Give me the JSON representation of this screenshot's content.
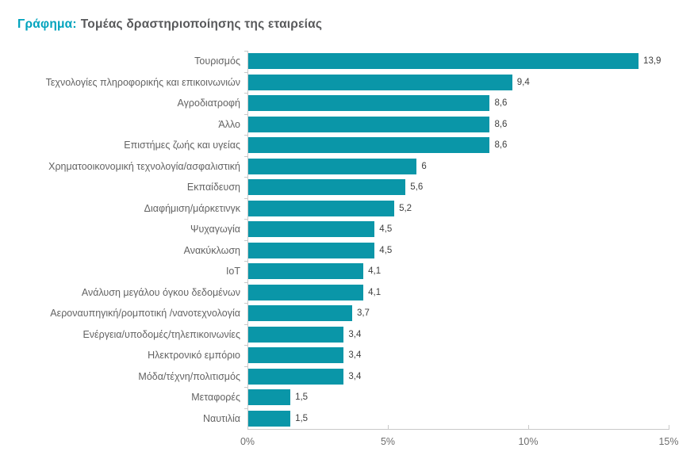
{
  "header": {
    "title_prefix": "Γράφημα:",
    "title_text": "Τομέας δραστηριοποίησης της εταιρείας"
  },
  "colors": {
    "bar": "#0a96a8",
    "title_accent": "#00a3bd",
    "title_text": "#58595b",
    "category_label": "#636363",
    "value_label": "#3f3f3f",
    "axis_line": "#c9c9c9",
    "tick_label": "#6e6e6e"
  },
  "chart_data": {
    "type": "bar",
    "orientation": "horizontal",
    "title": "Γράφημα: Τομέας δραστηριοποίησης της εταιρείας",
    "xlabel": "",
    "ylabel": "",
    "xlim": [
      0,
      15
    ],
    "x_tick_values": [
      0,
      5,
      10,
      15
    ],
    "x_tick_labels": [
      "0%",
      "5%",
      "10%",
      "15%"
    ],
    "grid": false,
    "legend": false,
    "categories": [
      "Τουρισμός",
      "Τεχνολογίες πληροφορικής και επικοινωνιών",
      "Αγροδιατροφή",
      "Άλλο",
      "Επιστήμες ζωής και υγείας",
      "Χρηματοοικονομική τεχνολογία/ασφαλιστική",
      "Εκπαίδευση",
      "Διαφήμιση/μάρκετινγκ",
      "Ψυχαγωγία",
      "Ανακύκλωση",
      "IoT",
      "Ανάλυση μεγάλου όγκου δεδομένων",
      "Αεροναυπηγική/ρομποτική /νανοτεχνολογία",
      "Ενέργεια/υποδομές/τηλεπικοινωνίες",
      "Ηλεκτρονικό εμπόριο",
      "Μόδα/τέχνη/πολιτισμός",
      "Μεταφορές",
      "Ναυτιλία"
    ],
    "values": [
      13.9,
      9.4,
      8.6,
      8.6,
      8.6,
      6,
      5.6,
      5.2,
      4.5,
      4.5,
      4.1,
      4.1,
      3.7,
      3.4,
      3.4,
      3.4,
      1.5,
      1.5
    ],
    "value_labels": [
      "13,9",
      "9,4",
      "8,6",
      "8,6",
      "8,6",
      "6",
      "5,6",
      "5,2",
      "4,5",
      "4,5",
      "4,1",
      "4,1",
      "3,7",
      "3,4",
      "3,4",
      "3,4",
      "1,5",
      "1,5"
    ]
  }
}
